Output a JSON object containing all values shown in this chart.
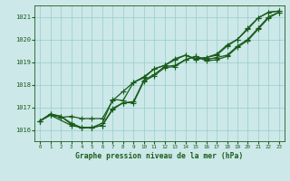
{
  "background_color": "#cce8e8",
  "plot_bg_color": "#cce8e8",
  "grid_color": "#99cccc",
  "line_color": "#1a5c1a",
  "title": "Graphe pression niveau de la mer (hPa)",
  "xlim": [
    -0.5,
    23.5
  ],
  "ylim": [
    1015.5,
    1021.5
  ],
  "yticks": [
    1016,
    1017,
    1018,
    1019,
    1020,
    1021
  ],
  "xticks": [
    0,
    1,
    2,
    3,
    4,
    5,
    6,
    7,
    8,
    9,
    10,
    11,
    12,
    13,
    14,
    15,
    16,
    17,
    18,
    19,
    20,
    21,
    22,
    23
  ],
  "series1": {
    "x": [
      0,
      1,
      2,
      3,
      4,
      5,
      6,
      7,
      8,
      9,
      10,
      11,
      12,
      13,
      14,
      15,
      16,
      17,
      18,
      19,
      20,
      21,
      22,
      23
    ],
    "y": [
      1016.4,
      1016.7,
      1016.6,
      1016.3,
      1016.1,
      1016.1,
      1016.3,
      1017.35,
      1017.3,
      1018.1,
      1018.3,
      1018.7,
      1018.85,
      1019.15,
      1019.3,
      1019.1,
      1019.2,
      1019.3,
      1019.7,
      1020.0,
      1020.45,
      1020.95,
      1021.2,
      1021.25
    ]
  },
  "series2": {
    "x": [
      0,
      1,
      2,
      3,
      4,
      5,
      6,
      7,
      8,
      9,
      10,
      11,
      12,
      13,
      14,
      15,
      16,
      17,
      18,
      19,
      20,
      21,
      22,
      23
    ],
    "y": [
      1016.4,
      1016.7,
      1016.6,
      1016.25,
      1016.1,
      1016.1,
      1016.2,
      1016.95,
      1017.2,
      1017.25,
      1018.2,
      1018.45,
      1018.8,
      1018.85,
      1019.1,
      1019.25,
      1019.1,
      1019.2,
      1019.3,
      1019.7,
      1020.0,
      1020.5,
      1021.0,
      1021.2
    ]
  },
  "series3": {
    "x": [
      0,
      1,
      2,
      3,
      4,
      5,
      6,
      7,
      8,
      9,
      10,
      11,
      12,
      13,
      14,
      15,
      16,
      17,
      18,
      19,
      20,
      21,
      22,
      23
    ],
    "y": [
      1016.4,
      1016.65,
      1016.55,
      1016.6,
      1016.5,
      1016.5,
      1016.5,
      1017.3,
      1017.7,
      1018.1,
      1018.35,
      1018.7,
      1018.85,
      1019.1,
      1019.3,
      1019.15,
      1019.2,
      1019.35,
      1019.75,
      1020.0,
      1020.5,
      1020.95,
      1021.2,
      1021.25
    ]
  },
  "series4": {
    "x": [
      0,
      1,
      3,
      4,
      5,
      6,
      7,
      8,
      9,
      10,
      11,
      12,
      13,
      14,
      15,
      16,
      17,
      18,
      19,
      20,
      21,
      22,
      23
    ],
    "y": [
      1016.4,
      1016.65,
      1016.2,
      1016.1,
      1016.1,
      1016.2,
      1016.9,
      1017.2,
      1017.2,
      1018.15,
      1018.4,
      1018.75,
      1018.8,
      1019.1,
      1019.25,
      1019.05,
      1019.1,
      1019.25,
      1019.65,
      1019.95,
      1020.45,
      1020.95,
      1021.2
    ]
  }
}
